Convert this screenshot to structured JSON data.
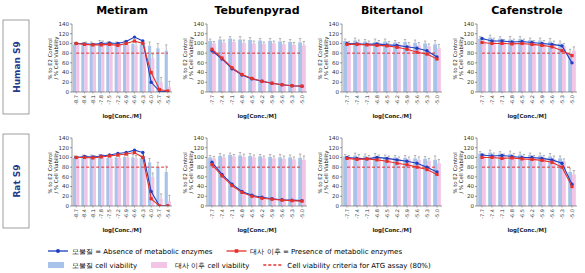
{
  "row_labels": [
    "Human S9",
    "Rat S9"
  ],
  "chart_data": [
    {
      "type": "bar",
      "title": "Metiram",
      "legend": "bottom",
      "grid": false,
      "y_label": "% to E2 Control / % Cell Viability",
      "x_label": "log[Conc./M]",
      "categories": [
        "-8.7",
        "-8.4",
        "-8.1",
        "-7.8",
        "-7.5",
        "-7.2",
        "-6.9",
        "-6.6",
        "-6.3",
        "-6.0",
        "-5.7",
        "-5.4"
      ],
      "ylim": [
        0,
        140
      ],
      "yticks": [
        0,
        20,
        40,
        60,
        80,
        100,
        120,
        140
      ],
      "series": [
        {
          "name": "모물질 cell viability",
          "type": "bar",
          "color": "#a8c3ea",
          "values": [
            98,
            97,
            99,
            100,
            98,
            99,
            100,
            99,
            98,
            95,
            90,
            85
          ],
          "errors": [
            4,
            5,
            4,
            6,
            5,
            4,
            5,
            6,
            5,
            8,
            10,
            12
          ]
        },
        {
          "name": "대사 이후 cell viability",
          "type": "bar",
          "color": "#f2c4e6",
          "values": [
            97,
            98,
            96,
            99,
            97,
            98,
            97,
            96,
            95,
            70,
            20,
            10
          ],
          "errors": [
            4,
            5,
            4,
            6,
            5,
            4,
            5,
            6,
            5,
            8,
            10,
            12
          ]
        },
        {
          "name": "모물질 = Absence of metabolic enzymes",
          "type": "line",
          "color": "#1f3fbf",
          "marker": "circle",
          "values": [
            100,
            99,
            98,
            100,
            101,
            100,
            104,
            113,
            105,
            20,
            2,
            0
          ]
        },
        {
          "name": "대사 이후 = Presence of metabolic enzymes",
          "type": "line",
          "color": "#e8302a",
          "marker": "square",
          "values": [
            100,
            98,
            97,
            97,
            98,
            96,
            100,
            105,
            100,
            40,
            5,
            2
          ]
        },
        {
          "name": "Cell viability criteria for ATG assay (80%)",
          "type": "line",
          "color": "#e8302a",
          "line_style": "dashed",
          "values": [
            80,
            80,
            80,
            80,
            80,
            80,
            80,
            80,
            80,
            80,
            80,
            80
          ]
        }
      ]
    },
    {
      "type": "bar",
      "title": "Tebufenpyrad",
      "grid": false,
      "y_label": "% to E2 Control / % Cell Viability",
      "x_label": "log[Conc./M]",
      "categories": [
        "-7.7",
        "-7.4",
        "-7.1",
        "-6.8",
        "-6.5",
        "-6.2",
        "-5.9",
        "-5.6",
        "-5.3",
        "-5.0"
      ],
      "ylim": [
        0,
        140
      ],
      "yticks": [
        0,
        20,
        40,
        60,
        80,
        100,
        120,
        140
      ],
      "series": [
        {
          "type": "bar",
          "color": "#a8c3ea",
          "values": [
            105,
            108,
            110,
            108,
            107,
            106,
            105,
            104,
            103,
            102
          ],
          "errors": [
            4,
            5,
            4,
            6,
            5,
            4,
            5,
            6,
            5,
            8
          ]
        },
        {
          "type": "bar",
          "color": "#f2c4e6",
          "values": [
            100,
            102,
            103,
            101,
            100,
            99,
            100,
            98,
            97,
            96
          ],
          "errors": [
            4,
            5,
            4,
            6,
            5,
            4,
            5,
            6,
            5,
            8
          ]
        },
        {
          "type": "line",
          "color": "#1f3fbf",
          "marker": "circle",
          "values": [
            85,
            68,
            48,
            35,
            27,
            22,
            18,
            15,
            13,
            12
          ]
        },
        {
          "type": "line",
          "color": "#e8302a",
          "marker": "square",
          "values": [
            88,
            70,
            50,
            36,
            28,
            22,
            18,
            15,
            13,
            12
          ]
        },
        {
          "type": "line",
          "color": "#e8302a",
          "line_style": "dashed",
          "values": [
            80,
            80,
            80,
            80,
            80,
            80,
            80,
            80,
            80,
            80
          ]
        }
      ]
    },
    {
      "type": "bar",
      "title": "Bitertanol",
      "grid": false,
      "y_label": "% to E2 Control / % Cell Viability",
      "x_label": "log[Conc./M]",
      "categories": [
        "-7.7",
        "-7.4",
        "-7.1",
        "-6.8",
        "-6.5",
        "-6.2",
        "-5.9",
        "-5.6",
        "-5.3",
        "-5.0"
      ],
      "ylim": [
        0,
        140
      ],
      "yticks": [
        0,
        20,
        40,
        60,
        80,
        100,
        120,
        140
      ],
      "series": [
        {
          "type": "bar",
          "color": "#a8c3ea",
          "values": [
            105,
            106,
            104,
            103,
            104,
            102,
            103,
            101,
            100,
            98
          ],
          "errors": [
            4,
            5,
            4,
            6,
            5,
            4,
            5,
            6,
            5,
            8
          ]
        },
        {
          "type": "bar",
          "color": "#f2c4e6",
          "values": [
            100,
            102,
            101,
            100,
            99,
            98,
            97,
            96,
            94,
            90
          ],
          "errors": [
            4,
            5,
            4,
            6,
            5,
            4,
            5,
            6,
            5,
            8
          ]
        },
        {
          "type": "line",
          "color": "#1f3fbf",
          "marker": "circle",
          "values": [
            100,
            99,
            98,
            99,
            97,
            96,
            93,
            90,
            85,
            72
          ]
        },
        {
          "type": "line",
          "color": "#e8302a",
          "marker": "square",
          "values": [
            98,
            98,
            97,
            96,
            95,
            92,
            88,
            82,
            78,
            68
          ]
        },
        {
          "type": "line",
          "color": "#e8302a",
          "line_style": "dashed",
          "values": [
            80,
            80,
            80,
            80,
            80,
            80,
            80,
            80,
            80,
            80
          ]
        }
      ]
    },
    {
      "type": "bar",
      "title": "Cafenstrole",
      "grid": false,
      "y_label": "% to E2 Control / % Cell Viability",
      "x_label": "log[Conc./M]",
      "categories": [
        "-7.7",
        "-7.4",
        "-7.1",
        "-6.8",
        "-6.5",
        "-6.2",
        "-5.9",
        "-5.6",
        "-5.3",
        "-5.0"
      ],
      "ylim": [
        0,
        140
      ],
      "yticks": [
        0,
        20,
        40,
        60,
        80,
        100,
        120,
        140
      ],
      "series": [
        {
          "type": "bar",
          "color": "#a8c3ea",
          "values": [
            110,
            112,
            110,
            108,
            109,
            107,
            106,
            104,
            100,
            80
          ],
          "errors": [
            4,
            5,
            4,
            6,
            5,
            4,
            5,
            6,
            5,
            8
          ]
        },
        {
          "type": "bar",
          "color": "#f2c4e6",
          "values": [
            105,
            106,
            104,
            103,
            104,
            102,
            101,
            99,
            95,
            85
          ],
          "errors": [
            4,
            5,
            4,
            6,
            5,
            4,
            5,
            6,
            5,
            8
          ]
        },
        {
          "type": "line",
          "color": "#1f3fbf",
          "marker": "circle",
          "values": [
            110,
            105,
            105,
            103,
            104,
            102,
            100,
            98,
            95,
            60
          ]
        },
        {
          "type": "line",
          "color": "#e8302a",
          "marker": "square",
          "values": [
            102,
            100,
            100,
            99,
            100,
            98,
            96,
            93,
            85,
            75
          ]
        },
        {
          "type": "line",
          "color": "#e8302a",
          "line_style": "dashed",
          "values": [
            80,
            80,
            80,
            80,
            80,
            80,
            80,
            80,
            80,
            80
          ]
        }
      ]
    },
    {
      "type": "bar",
      "grid": false,
      "y_label": "% to E2 Control / % Cell Viability",
      "x_label": "log[Conc./M]",
      "categories": [
        "-8.7",
        "-8.4",
        "-8.1",
        "-7.8",
        "-7.5",
        "-7.2",
        "-6.9",
        "-6.6",
        "-6.3",
        "-6.0",
        "-5.7",
        "-5.4"
      ],
      "ylim": [
        0,
        140
      ],
      "yticks": [
        0,
        20,
        40,
        60,
        80,
        100,
        120,
        140
      ],
      "series": [
        {
          "type": "bar",
          "color": "#a8c3ea",
          "values": [
            99,
            100,
            101,
            100,
            99,
            100,
            101,
            100,
            98,
            90,
            80,
            70
          ],
          "errors": [
            4,
            5,
            4,
            6,
            5,
            4,
            5,
            6,
            5,
            8,
            10,
            12
          ]
        },
        {
          "type": "bar",
          "color": "#f2c4e6",
          "values": [
            98,
            99,
            100,
            99,
            98,
            99,
            100,
            98,
            96,
            60,
            15,
            10
          ],
          "errors": [
            4,
            5,
            4,
            6,
            5,
            4,
            5,
            6,
            5,
            8,
            10,
            12
          ]
        },
        {
          "type": "line",
          "color": "#1f3fbf",
          "marker": "circle",
          "values": [
            100,
            102,
            101,
            103,
            105,
            108,
            110,
            115,
            110,
            30,
            0,
            0
          ]
        },
        {
          "type": "line",
          "color": "#e8302a",
          "marker": "square",
          "values": [
            100,
            100,
            99,
            101,
            103,
            105,
            107,
            110,
            100,
            15,
            0,
            0
          ]
        },
        {
          "type": "line",
          "color": "#e8302a",
          "line_style": "dashed",
          "values": [
            80,
            80,
            80,
            80,
            80,
            80,
            80,
            80,
            80,
            80,
            80,
            80
          ]
        }
      ]
    },
    {
      "type": "bar",
      "grid": false,
      "y_label": "% to E2 Control / % Cell Viability",
      "x_label": "log[Conc./M]",
      "categories": [
        "-7.7",
        "-7.4",
        "-7.1",
        "-6.8",
        "-6.5",
        "-6.2",
        "-5.9",
        "-5.6",
        "-5.3",
        "-5.0"
      ],
      "ylim": [
        0,
        140
      ],
      "yticks": [
        0,
        20,
        40,
        60,
        80,
        100,
        120,
        140
      ],
      "series": [
        {
          "type": "bar",
          "color": "#a8c3ea",
          "values": [
            100,
            103,
            105,
            104,
            103,
            102,
            101,
            100,
            100,
            99
          ],
          "errors": [
            4,
            5,
            4,
            6,
            5,
            4,
            5,
            6,
            5,
            8
          ]
        },
        {
          "type": "bar",
          "color": "#f2c4e6",
          "values": [
            98,
            100,
            102,
            101,
            100,
            99,
            98,
            97,
            96,
            95
          ],
          "errors": [
            4,
            5,
            4,
            6,
            5,
            4,
            5,
            6,
            5,
            8
          ]
        },
        {
          "type": "line",
          "color": "#1f3fbf",
          "marker": "circle",
          "values": [
            90,
            65,
            45,
            30,
            22,
            18,
            15,
            13,
            12,
            11
          ]
        },
        {
          "type": "line",
          "color": "#e8302a",
          "marker": "square",
          "values": [
            85,
            62,
            42,
            28,
            20,
            16,
            14,
            12,
            11,
            10
          ]
        },
        {
          "type": "line",
          "color": "#e8302a",
          "line_style": "dashed",
          "values": [
            80,
            80,
            80,
            80,
            80,
            80,
            80,
            80,
            80,
            80
          ]
        }
      ]
    },
    {
      "type": "bar",
      "grid": false,
      "y_label": "% to E2 Control / % Cell Viability",
      "x_label": "log[Conc./M]",
      "categories": [
        "-7.7",
        "-7.4",
        "-7.1",
        "-6.8",
        "-6.5",
        "-6.2",
        "-5.9",
        "-5.6",
        "-5.3",
        "-5.0"
      ],
      "ylim": [
        0,
        140
      ],
      "yticks": [
        0,
        20,
        40,
        60,
        80,
        100,
        120,
        140
      ],
      "series": [
        {
          "type": "bar",
          "color": "#a8c3ea",
          "values": [
            102,
            104,
            103,
            102,
            100,
            100,
            99,
            98,
            97,
            95
          ],
          "errors": [
            4,
            5,
            4,
            6,
            5,
            4,
            5,
            6,
            5,
            8
          ]
        },
        {
          "type": "bar",
          "color": "#f2c4e6",
          "values": [
            100,
            101,
            100,
            99,
            98,
            97,
            96,
            95,
            93,
            88
          ],
          "errors": [
            4,
            5,
            4,
            6,
            5,
            4,
            5,
            6,
            5,
            8
          ]
        },
        {
          "type": "line",
          "color": "#1f3fbf",
          "marker": "circle",
          "values": [
            100,
            98,
            97,
            100,
            98,
            95,
            92,
            88,
            80,
            70
          ]
        },
        {
          "type": "line",
          "color": "#e8302a",
          "marker": "square",
          "values": [
            98,
            96,
            97,
            95,
            92,
            88,
            85,
            80,
            75,
            65
          ]
        },
        {
          "type": "line",
          "color": "#e8302a",
          "line_style": "dashed",
          "values": [
            80,
            80,
            80,
            80,
            80,
            80,
            80,
            80,
            80,
            80
          ]
        }
      ]
    },
    {
      "type": "bar",
      "grid": false,
      "y_label": "% to E2 Control / % Cell Viability",
      "x_label": "log[Conc./M]",
      "categories": [
        "-7.7",
        "-7.4",
        "-7.1",
        "-6.8",
        "-6.5",
        "-6.2",
        "-5.9",
        "-5.6",
        "-5.3",
        "-5.0"
      ],
      "ylim": [
        0,
        140
      ],
      "yticks": [
        0,
        20,
        40,
        60,
        80,
        100,
        120,
        140
      ],
      "series": [
        {
          "type": "bar",
          "color": "#a8c3ea",
          "values": [
            108,
            110,
            108,
            107,
            106,
            105,
            104,
            102,
            98,
            70
          ],
          "errors": [
            4,
            5,
            4,
            6,
            5,
            4,
            5,
            6,
            5,
            8
          ]
        },
        {
          "type": "bar",
          "color": "#f2c4e6",
          "values": [
            103,
            104,
            103,
            102,
            101,
            100,
            99,
            97,
            92,
            65
          ],
          "errors": [
            4,
            5,
            4,
            6,
            5,
            4,
            5,
            6,
            5,
            8
          ]
        },
        {
          "type": "line",
          "color": "#1f3fbf",
          "marker": "circle",
          "values": [
            105,
            103,
            104,
            102,
            100,
            100,
            98,
            95,
            88,
            45
          ]
        },
        {
          "type": "line",
          "color": "#e8302a",
          "marker": "square",
          "values": [
            100,
            100,
            98,
            99,
            97,
            96,
            94,
            90,
            80,
            40
          ]
        },
        {
          "type": "line",
          "color": "#e8302a",
          "line_style": "dashed",
          "values": [
            80,
            80,
            80,
            80,
            80,
            80,
            80,
            80,
            80,
            80
          ]
        }
      ]
    }
  ]
}
